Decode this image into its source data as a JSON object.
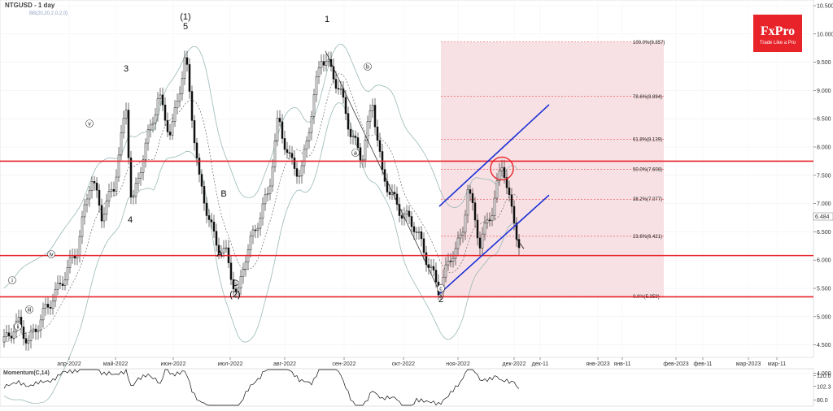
{
  "chart_data": {
    "type": "candlestick",
    "symbol_title": "NTGUSD - 1 day",
    "indicator_label": "BB(20,20,2,0,2,0)",
    "y_axis": {
      "range": [
        3.8,
        10.6
      ],
      "ticks": [
        "10.500",
        "10.000",
        "9.500",
        "9.000",
        "8.500",
        "8.000",
        "7.500",
        "7.000",
        "6.500",
        "6.000",
        "5.500",
        "5.000",
        "4.500",
        "4.000"
      ]
    },
    "x_axis": {
      "ticks": [
        "апр-2022",
        "май-2022",
        "июн-2022",
        "июл-2022",
        "авг-2022",
        "сен-2022",
        "окт-2022",
        "ноя-2022",
        "дек-2022",
        "дек-11",
        "янв-2023",
        "янв-11",
        "фев-2023",
        "фев-11",
        "мар-2023",
        "мар-11"
      ]
    },
    "current_price_label": "6.484",
    "horizontal_levels": [
      7.75,
      6.08,
      5.35
    ],
    "fibonacci": [
      {
        "label": "100.0%(9.857)",
        "value": 9.857
      },
      {
        "label": "78.6%(8.894)",
        "value": 8.894
      },
      {
        "label": "61.8%(8.139)",
        "value": 8.139
      },
      {
        "label": "50.0%(7.608)",
        "value": 7.608
      },
      {
        "label": "38.2%(7.077)",
        "value": 7.077
      },
      {
        "label": "23.6%(6.421)",
        "value": 6.421
      },
      {
        "label": "0.0%(5.359)",
        "value": 5.359
      }
    ],
    "wave_labels": [
      "(1)",
      "5",
      "3",
      "4",
      "1",
      "2",
      "A",
      "B",
      "C",
      "(2)"
    ],
    "wave_small_labels": [
      "i",
      "ii",
      "iii",
      "iv",
      "v",
      "a",
      "b",
      "c"
    ],
    "momentum": {
      "label": "Momentum(C,14)",
      "ticks": [
        "120.0",
        "102.3",
        "80.0"
      ]
    }
  },
  "brand": {
    "logo_text": "FxPro",
    "tagline": "Trade Like a Pro",
    "color": "#e8232a"
  },
  "colors": {
    "level": "#e8232a",
    "channel": "#1a2fd6",
    "fib_zone": "#f7e1e4",
    "bands": "#9bb8b8"
  }
}
